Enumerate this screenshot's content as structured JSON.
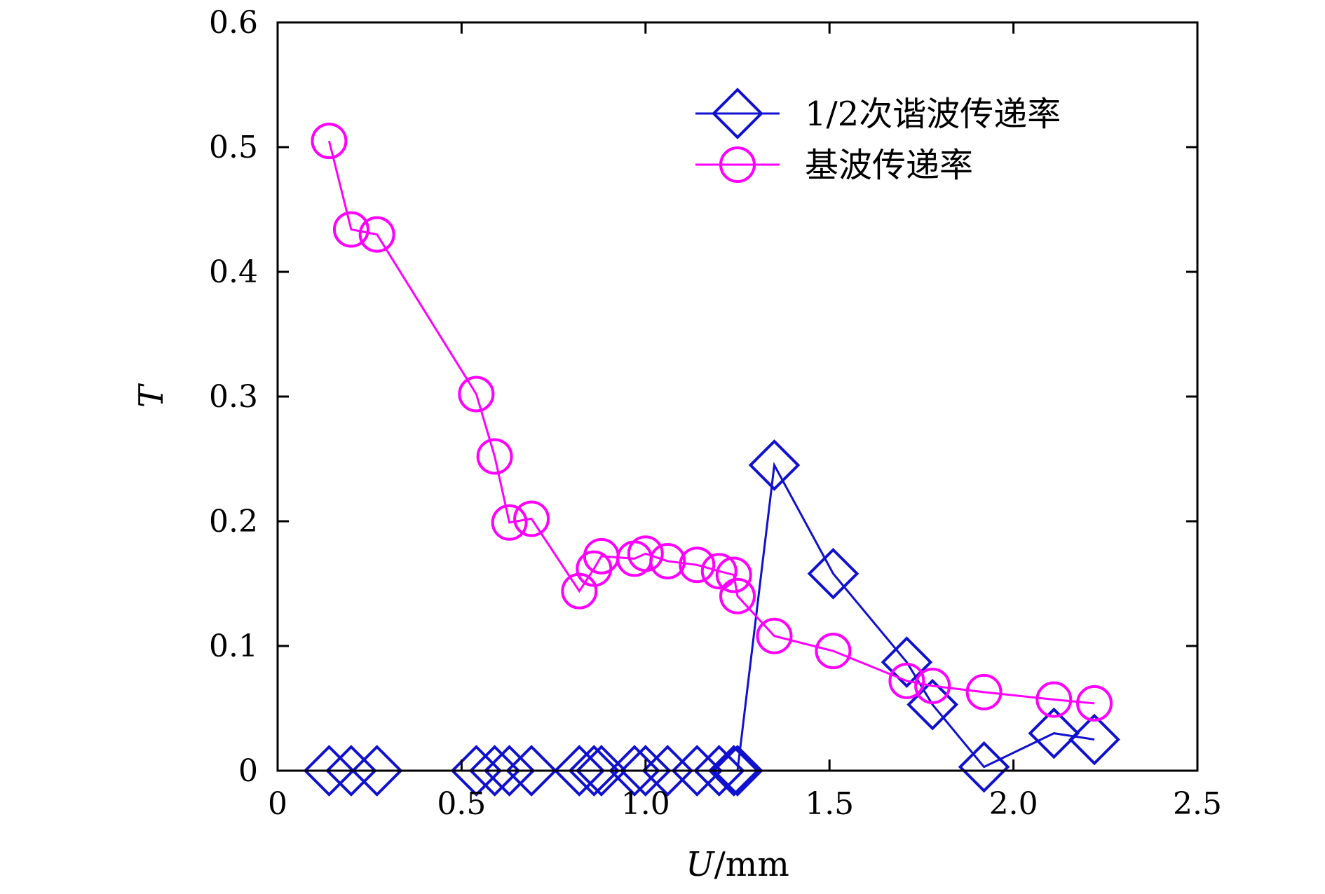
{
  "chart_data": {
    "type": "line",
    "xlabel": {
      "var": "U",
      "unit": "/mm"
    },
    "ylabel": "T",
    "xlim": [
      0,
      2.5
    ],
    "ylim": [
      0,
      0.6
    ],
    "xticks": [
      {
        "v": 0,
        "label": "0"
      },
      {
        "v": 0.5,
        "label": "0.5"
      },
      {
        "v": 1.0,
        "label": "1.0"
      },
      {
        "v": 1.5,
        "label": "1.5"
      },
      {
        "v": 2.0,
        "label": "2.0"
      },
      {
        "v": 2.5,
        "label": "2.5"
      }
    ],
    "yticks": [
      {
        "v": 0,
        "label": "0"
      },
      {
        "v": 0.1,
        "label": "0.1"
      },
      {
        "v": 0.2,
        "label": "0.2"
      },
      {
        "v": 0.3,
        "label": "0.3"
      },
      {
        "v": 0.4,
        "label": "0.4"
      },
      {
        "v": 0.5,
        "label": "0.5"
      },
      {
        "v": 0.6,
        "label": "0.6"
      }
    ],
    "grid": false,
    "legend_position": "top-right",
    "series": [
      {
        "name": "1/2次谐波传递率",
        "color": "#1010d0",
        "marker": "diamond",
        "x": [
          0.14,
          0.2,
          0.27,
          0.54,
          0.59,
          0.63,
          0.69,
          0.82,
          0.86,
          0.88,
          0.97,
          1.0,
          1.06,
          1.14,
          1.2,
          1.24,
          1.25,
          1.35,
          1.51,
          1.71,
          1.78,
          1.92,
          2.11,
          2.22
        ],
        "y": [
          0,
          0,
          0,
          0,
          0,
          0,
          0,
          0,
          0,
          0,
          0,
          0,
          0,
          0,
          0,
          0,
          0,
          0.245,
          0.158,
          0.087,
          0.053,
          0.003,
          0.03,
          0.025
        ]
      },
      {
        "name": "基波传递率",
        "color": "#ff00ff",
        "marker": "circle",
        "x": [
          0.14,
          0.2,
          0.27,
          0.54,
          0.59,
          0.63,
          0.69,
          0.82,
          0.86,
          0.88,
          0.97,
          1.0,
          1.06,
          1.14,
          1.2,
          1.24,
          1.25,
          1.35,
          1.51,
          1.71,
          1.78,
          1.92,
          2.11,
          2.22
        ],
        "y": [
          0.505,
          0.434,
          0.43,
          0.302,
          0.252,
          0.199,
          0.202,
          0.144,
          0.162,
          0.172,
          0.17,
          0.174,
          0.168,
          0.165,
          0.16,
          0.157,
          0.14,
          0.108,
          0.096,
          0.072,
          0.068,
          0.063,
          0.057,
          0.054
        ]
      }
    ]
  }
}
